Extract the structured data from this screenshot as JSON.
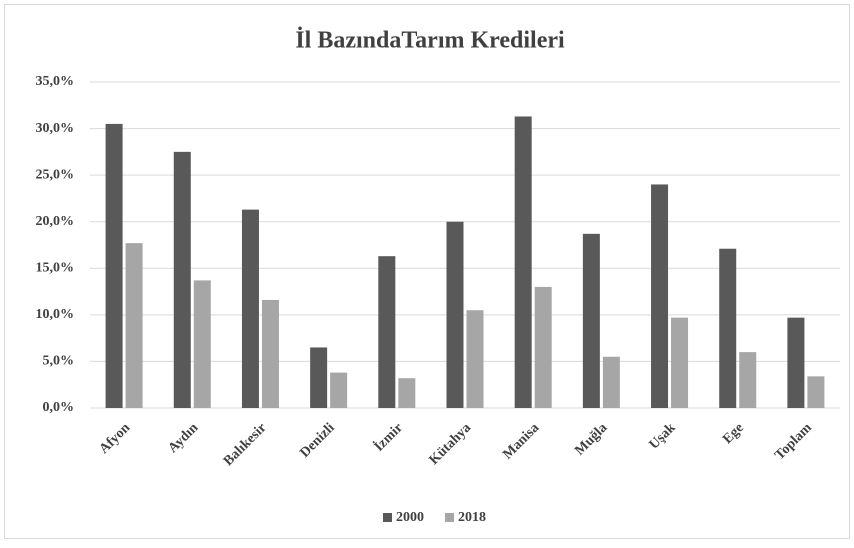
{
  "chart_data": {
    "type": "bar",
    "title": "İl BazındaTarım Kredileri",
    "categories": [
      "Afyon",
      "Aydın",
      "Balıkesir",
      "Denizli",
      "İzmir",
      "Kütahya",
      "Manisa",
      "Muğla",
      "Uşak",
      "Ege",
      "Toplam"
    ],
    "series": [
      {
        "name": "2000",
        "color": "#595959",
        "values": [
          30.5,
          27.5,
          21.3,
          6.5,
          16.3,
          20.0,
          31.3,
          18.7,
          24.0,
          17.1,
          9.7
        ]
      },
      {
        "name": "2018",
        "color": "#a6a6a6",
        "values": [
          17.7,
          13.7,
          11.6,
          3.8,
          3.2,
          10.5,
          13.0,
          5.5,
          9.7,
          6.0,
          3.4
        ]
      }
    ],
    "ylim": [
      0,
      35
    ],
    "yticks": [
      {
        "value": 0,
        "label": "0,0%"
      },
      {
        "value": 5,
        "label": "5,0%"
      },
      {
        "value": 10,
        "label": "10,0%"
      },
      {
        "value": 15,
        "label": "15,0%"
      },
      {
        "value": 20,
        "label": "20,0%"
      },
      {
        "value": 25,
        "label": "25,0%"
      },
      {
        "value": 30,
        "label": "30,0%"
      },
      {
        "value": 35,
        "label": "35,0%"
      }
    ],
    "grid": true,
    "legend": "bottom"
  }
}
